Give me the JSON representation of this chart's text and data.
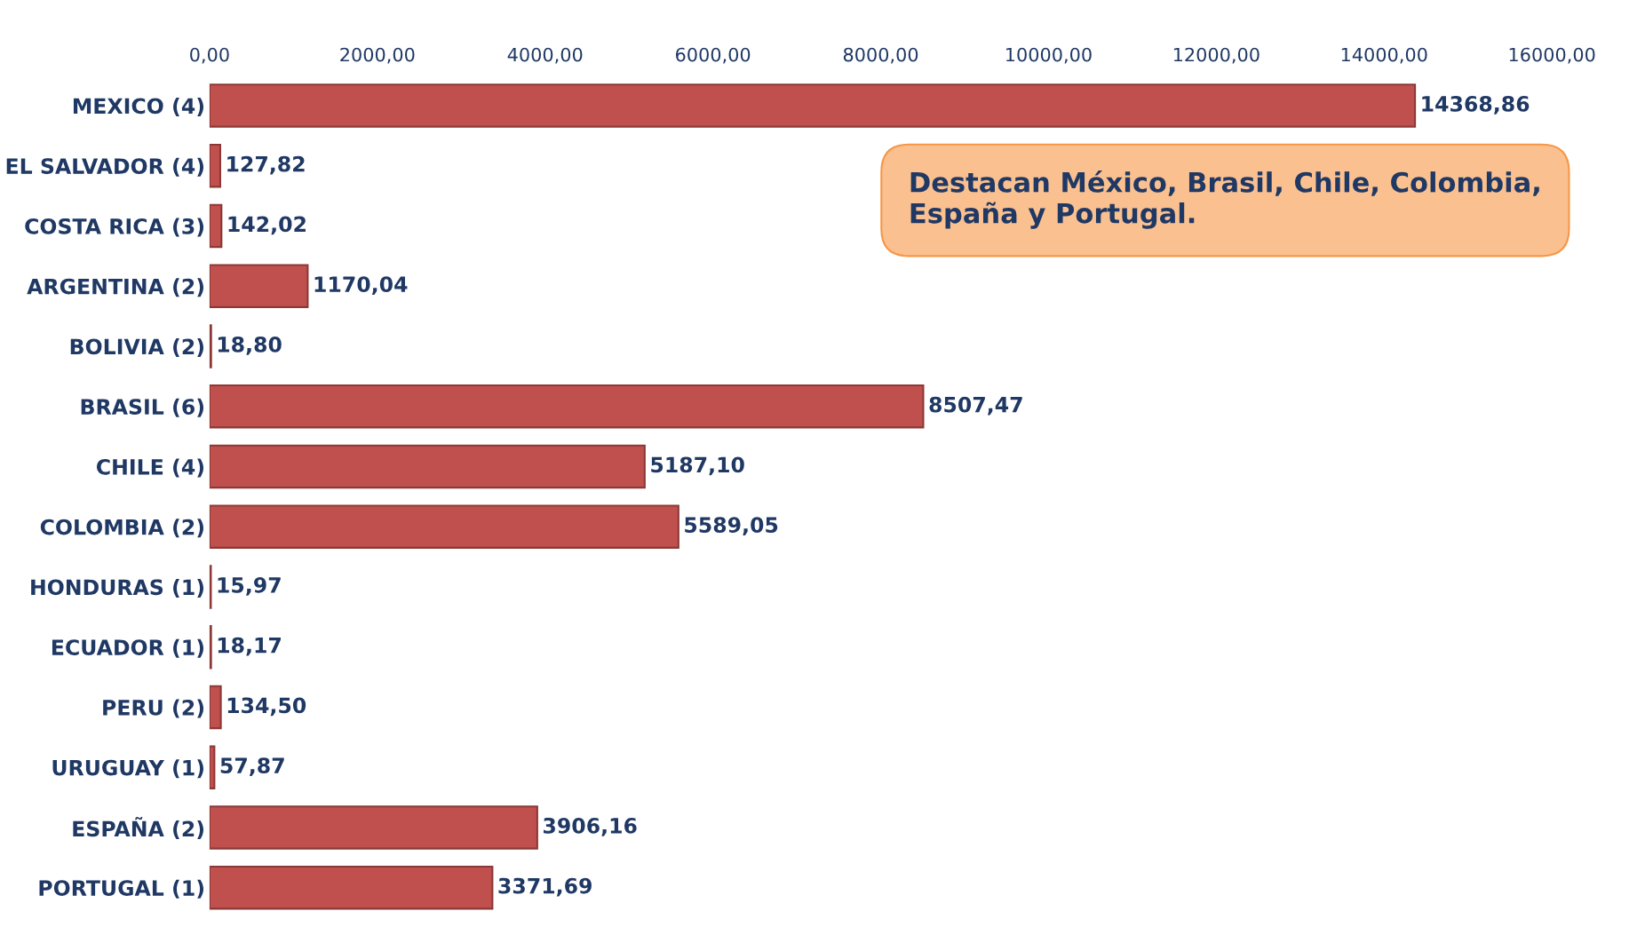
{
  "chart_data": {
    "type": "bar",
    "orientation": "horizontal",
    "categories": [
      "MEXICO (4)",
      "EL SALVADOR (4)",
      "COSTA RICA (3)",
      "ARGENTINA (2)",
      "BOLIVIA (2)",
      "BRASIL (6)",
      "CHILE (4)",
      "COLOMBIA (2)",
      "HONDURAS (1)",
      "ECUADOR (1)",
      "PERU (2)",
      "URUGUAY (1)",
      "ESPAÑA (2)",
      "PORTUGAL (1)"
    ],
    "values": [
      14368.86,
      127.82,
      142.02,
      1170.04,
      18.8,
      8507.47,
      5187.1,
      5589.05,
      15.97,
      18.17,
      134.5,
      57.87,
      3906.16,
      3371.69
    ],
    "value_labels": [
      "14368,86",
      "127,82",
      "142,02",
      "1170,04",
      "18,80",
      "8507,47",
      "5187,10",
      "5589,05",
      "15,97",
      "18,17",
      "134,50",
      "57,87",
      "3906,16",
      "3371,69"
    ],
    "color": "#c0504d",
    "xlim": [
      0,
      16000
    ],
    "xticks": [
      {
        "value": 0,
        "label": "0,00"
      },
      {
        "value": 2000,
        "label": "2000,00"
      },
      {
        "value": 4000,
        "label": "4000,00"
      },
      {
        "value": 6000,
        "label": "6000,00"
      },
      {
        "value": 8000,
        "label": "8000,00"
      },
      {
        "value": 10000,
        "label": "10000,00"
      },
      {
        "value": 12000,
        "label": "12000,00"
      },
      {
        "value": 14000,
        "label": "14000,00"
      },
      {
        "value": 16000,
        "label": "16000,00"
      }
    ],
    "annotations": [
      "Destacan México, Brasil, Chile, Colombia, España y Portugal."
    ],
    "grid": false,
    "legend": false
  }
}
